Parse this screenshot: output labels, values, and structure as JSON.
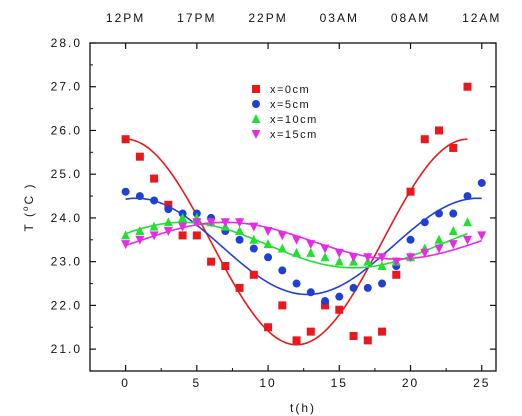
{
  "chart_data": {
    "type": "scatter",
    "title": "",
    "xlabel": "t(h)",
    "ylabel_main": "T (",
    "ylabel_sup": "o",
    "ylabel_unit": "C )",
    "xlim": [
      -2.5,
      26
    ],
    "ylim": [
      20.5,
      28.0
    ],
    "xticks": [
      0,
      5,
      10,
      15,
      20,
      25
    ],
    "xtick_labels": [
      "0",
      "5",
      "10",
      "15",
      "20",
      "25"
    ],
    "yticks": [
      21.0,
      22.0,
      23.0,
      24.0,
      25.0,
      26.0,
      27.0,
      28.0
    ],
    "ytick_labels": [
      "21.0",
      "22.0",
      "23.0",
      "24.0",
      "25.0",
      "26.0",
      "27.0",
      "28.0"
    ],
    "top_axis": {
      "ticks": [
        0,
        5,
        10,
        15,
        20,
        25
      ],
      "labels": [
        "12PM",
        "17PM",
        "22PM",
        "03AM",
        "08AM",
        "12AM"
      ]
    },
    "grid": false,
    "legend_position": "top-center",
    "series": [
      {
        "name": "x=0cm",
        "marker": "square",
        "color": "#e8191c",
        "x": [
          0,
          1,
          2,
          3,
          4,
          5,
          6,
          7,
          8,
          9,
          10,
          11,
          12,
          13,
          14,
          15,
          16,
          17,
          18,
          19,
          20,
          21,
          22,
          23,
          24
        ],
        "y": [
          25.8,
          25.4,
          24.9,
          24.3,
          23.6,
          23.6,
          23.0,
          22.9,
          22.4,
          22.7,
          21.5,
          22.0,
          21.2,
          21.4,
          22.0,
          21.9,
          21.3,
          21.2,
          21.4,
          22.7,
          24.6,
          25.8,
          26.0,
          25.6,
          27.0
        ],
        "fit": {
          "mean": 23.45,
          "amp": 2.35,
          "peak_t": 0
        }
      },
      {
        "name": "x=5cm",
        "marker": "circle",
        "color": "#1f3fd6",
        "x": [
          0,
          1,
          2,
          3,
          4,
          5,
          6,
          7,
          8,
          9,
          10,
          11,
          12,
          13,
          14,
          15,
          16,
          17,
          18,
          19,
          20,
          21,
          22,
          23,
          24,
          25
        ],
        "y": [
          24.6,
          24.5,
          24.4,
          24.2,
          24.1,
          24.1,
          24.0,
          23.7,
          23.5,
          23.3,
          23.1,
          22.8,
          22.5,
          22.3,
          22.1,
          22.2,
          22.4,
          22.4,
          22.5,
          22.9,
          23.5,
          23.9,
          24.1,
          24.1,
          24.5,
          24.8
        ],
        "fit": {
          "mean": 23.35,
          "amp": 1.1,
          "peak_t": 0.75
        }
      },
      {
        "name": "x=10cm",
        "marker": "triangle-up",
        "color": "#22e032",
        "x": [
          0,
          1,
          2,
          3,
          4,
          5,
          6,
          7,
          8,
          9,
          10,
          11,
          12,
          13,
          14,
          15,
          16,
          17,
          18,
          19,
          20,
          21,
          22,
          23,
          24
        ],
        "y": [
          23.6,
          23.7,
          23.8,
          23.9,
          24.0,
          24.0,
          23.9,
          23.8,
          23.7,
          23.5,
          23.4,
          23.3,
          23.2,
          23.2,
          23.1,
          23.0,
          23.0,
          23.0,
          22.9,
          23.0,
          23.1,
          23.3,
          23.5,
          23.7,
          23.9
        ],
        "fit": {
          "mean": 23.38,
          "amp": 0.52,
          "peak_t": 4.0
        }
      },
      {
        "name": "x=15cm",
        "marker": "triangle-down",
        "color": "#e82ae8",
        "x": [
          0,
          1,
          2,
          3,
          4,
          5,
          6,
          7,
          8,
          9,
          10,
          11,
          12,
          13,
          14,
          15,
          16,
          17,
          18,
          19,
          20,
          21,
          22,
          23,
          24,
          25
        ],
        "y": [
          23.4,
          23.5,
          23.6,
          23.7,
          23.8,
          23.9,
          23.9,
          23.9,
          23.9,
          23.8,
          23.7,
          23.6,
          23.5,
          23.4,
          23.3,
          23.2,
          23.1,
          23.1,
          23.1,
          23.0,
          23.1,
          23.2,
          23.3,
          23.4,
          23.5,
          23.6
        ],
        "fit": {
          "mean": 23.48,
          "amp": 0.42,
          "peak_t": 7.0
        }
      }
    ]
  }
}
